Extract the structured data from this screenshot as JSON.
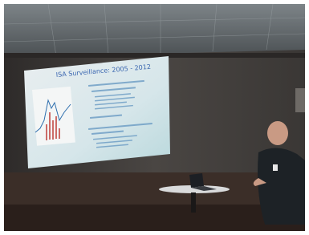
{
  "slide": {
    "title": "ISA Surveillance: 2005 - 2012"
  }
}
